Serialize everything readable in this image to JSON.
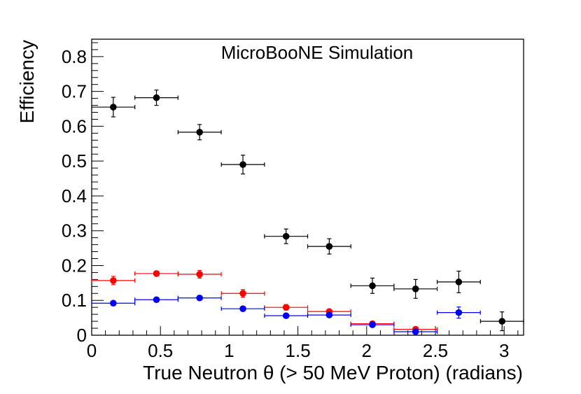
{
  "chart_data": {
    "type": "scatter",
    "title": "MicroBooNE Simulation",
    "xlabel": "True Neutron θ (> 50 MeV Proton) (radians)",
    "ylabel": "Efficiency",
    "xlim": [
      0,
      3.14159
    ],
    "ylim": [
      0,
      0.85
    ],
    "grid": false,
    "x_ticks": [
      {
        "value": 0,
        "label": "0"
      },
      {
        "value": 0.5,
        "label": "0.5"
      },
      {
        "value": 1,
        "label": "1"
      },
      {
        "value": 1.5,
        "label": "1.5"
      },
      {
        "value": 2,
        "label": "2"
      },
      {
        "value": 2.5,
        "label": "2.5"
      },
      {
        "value": 3,
        "label": "3"
      }
    ],
    "y_ticks": [
      {
        "value": 0,
        "label": "0"
      },
      {
        "value": 0.1,
        "label": "0.1"
      },
      {
        "value": 0.2,
        "label": "0.2"
      },
      {
        "value": 0.3,
        "label": "0.3"
      },
      {
        "value": 0.4,
        "label": "0.4"
      },
      {
        "value": 0.5,
        "label": "0.5"
      },
      {
        "value": 0.6,
        "label": "0.6"
      },
      {
        "value": 0.7,
        "label": "0.7"
      },
      {
        "value": 0.8,
        "label": "0.8"
      }
    ],
    "series": [
      {
        "name": "black",
        "color": "#000000",
        "points": [
          {
            "x": 0.157,
            "xerr": 0.157,
            "y": 0.655,
            "yerr": 0.028
          },
          {
            "x": 0.471,
            "xerr": 0.157,
            "y": 0.682,
            "yerr": 0.022
          },
          {
            "x": 0.785,
            "xerr": 0.157,
            "y": 0.583,
            "yerr": 0.022
          },
          {
            "x": 1.1,
            "xerr": 0.157,
            "y": 0.49,
            "yerr": 0.027
          },
          {
            "x": 1.414,
            "xerr": 0.157,
            "y": 0.284,
            "yerr": 0.021
          },
          {
            "x": 1.728,
            "xerr": 0.157,
            "y": 0.255,
            "yerr": 0.022
          },
          {
            "x": 2.042,
            "xerr": 0.157,
            "y": 0.142,
            "yerr": 0.022
          },
          {
            "x": 2.356,
            "xerr": 0.157,
            "y": 0.133,
            "yerr": 0.027
          },
          {
            "x": 2.67,
            "xerr": 0.157,
            "y": 0.153,
            "yerr": 0.031
          },
          {
            "x": 2.985,
            "xerr": 0.157,
            "y": 0.04,
            "yerr": 0.027
          }
        ]
      },
      {
        "name": "red",
        "color": "#ff0000",
        "points": [
          {
            "x": 0.157,
            "xerr": 0.157,
            "y": 0.157,
            "yerr": 0.012
          },
          {
            "x": 0.471,
            "xerr": 0.157,
            "y": 0.177,
            "yerr": 0.007
          },
          {
            "x": 0.785,
            "xerr": 0.157,
            "y": 0.175,
            "yerr": 0.011
          },
          {
            "x": 1.1,
            "xerr": 0.157,
            "y": 0.12,
            "yerr": 0.011
          },
          {
            "x": 1.414,
            "xerr": 0.157,
            "y": 0.08,
            "yerr": 0.008
          },
          {
            "x": 1.728,
            "xerr": 0.157,
            "y": 0.068,
            "yerr": 0.006
          },
          {
            "x": 2.042,
            "xerr": 0.157,
            "y": 0.033,
            "yerr": 0.004
          },
          {
            "x": 2.356,
            "xerr": 0.157,
            "y": 0.017,
            "yerr": 0.004
          }
        ]
      },
      {
        "name": "blue",
        "color": "#0000ff",
        "points": [
          {
            "x": 0.157,
            "xerr": 0.157,
            "y": 0.092,
            "yerr": 0.004
          },
          {
            "x": 0.471,
            "xerr": 0.157,
            "y": 0.102,
            "yerr": 0.004
          },
          {
            "x": 0.785,
            "xerr": 0.157,
            "y": 0.107,
            "yerr": 0.004
          },
          {
            "x": 1.1,
            "xerr": 0.157,
            "y": 0.076,
            "yerr": 0.004
          },
          {
            "x": 1.414,
            "xerr": 0.157,
            "y": 0.056,
            "yerr": 0.004
          },
          {
            "x": 1.728,
            "xerr": 0.157,
            "y": 0.058,
            "yerr": 0.004
          },
          {
            "x": 2.042,
            "xerr": 0.157,
            "y": 0.03,
            "yerr": 0.004
          },
          {
            "x": 2.356,
            "xerr": 0.157,
            "y": 0.01,
            "yerr": 0.003
          },
          {
            "x": 2.67,
            "xerr": 0.157,
            "y": 0.065,
            "yerr": 0.016
          }
        ]
      }
    ]
  }
}
